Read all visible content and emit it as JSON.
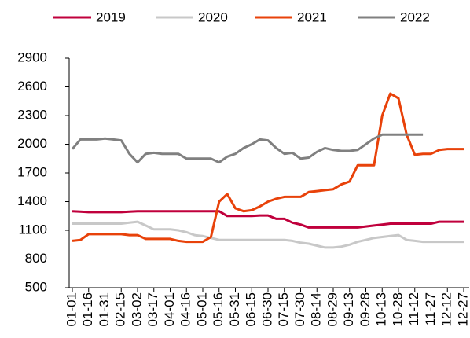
{
  "chart_data": {
    "type": "line",
    "categories": [
      "01-01",
      null,
      "01-16",
      null,
      "01-31",
      null,
      "02-15",
      null,
      "03-02",
      null,
      "03-17",
      null,
      "04-01",
      null,
      "04-16",
      null,
      "05-01",
      null,
      "05-16",
      null,
      "05-31",
      null,
      "06-15",
      null,
      "06-30",
      null,
      "07-15",
      null,
      "07-30",
      null,
      "08-14",
      null,
      "08-29",
      null,
      "09-13",
      null,
      "09-28",
      null,
      "10-13",
      null,
      "10-28",
      null,
      "11-12",
      null,
      "11-27",
      null,
      "12-12",
      null,
      "12-27"
    ],
    "series": [
      {
        "name": "2019",
        "color": "#c0003c",
        "values": [
          1300,
          1295,
          1290,
          1290,
          1290,
          1290,
          1290,
          1295,
          1300,
          1300,
          1300,
          1300,
          1300,
          1300,
          1300,
          1300,
          1300,
          1300,
          1300,
          1250,
          1250,
          1250,
          1250,
          1255,
          1255,
          1220,
          1220,
          1180,
          1160,
          1130,
          1130,
          1130,
          1130,
          1130,
          1130,
          1130,
          1140,
          1150,
          1160,
          1170,
          1170,
          1170,
          1170,
          1170,
          1170,
          1190,
          1190,
          1190,
          1190
        ]
      },
      {
        "name": "2020",
        "color": "#c8c8c8",
        "values": [
          1170,
          1170,
          1170,
          1170,
          1170,
          1170,
          1170,
          1180,
          1190,
          1150,
          1110,
          1110,
          1110,
          1100,
          1080,
          1050,
          1040,
          1020,
          1000,
          1000,
          1000,
          1000,
          1000,
          1000,
          1000,
          1000,
          1000,
          990,
          970,
          960,
          940,
          920,
          920,
          930,
          950,
          980,
          1000,
          1020,
          1030,
          1040,
          1050,
          1000,
          990,
          980,
          980,
          980,
          980,
          980,
          980
        ]
      },
      {
        "name": "2021",
        "color": "#e8420a",
        "values": [
          990,
          1000,
          1060,
          1060,
          1060,
          1060,
          1060,
          1050,
          1050,
          1010,
          1010,
          1010,
          1010,
          990,
          980,
          980,
          980,
          1030,
          1400,
          1480,
          1330,
          1300,
          1310,
          1350,
          1400,
          1430,
          1450,
          1450,
          1450,
          1500,
          1510,
          1520,
          1530,
          1580,
          1610,
          1780,
          1780,
          1780,
          2300,
          2530,
          2480,
          2100,
          1890,
          1900,
          1900,
          1940,
          1950,
          1950,
          1950
        ]
      },
      {
        "name": "2022",
        "color": "#808080",
        "values": [
          1950,
          2050,
          2050,
          2050,
          2060,
          2050,
          2040,
          1900,
          1810,
          1900,
          1910,
          1900,
          1900,
          1900,
          1850,
          1850,
          1850,
          1850,
          1810,
          1870,
          1900,
          1960,
          2000,
          2050,
          2040,
          1960,
          1900,
          1910,
          1850,
          1860,
          1920,
          1960,
          1940,
          1930,
          1930,
          1940,
          2000,
          2060,
          2100,
          2100,
          2100,
          2100,
          2100,
          2100,
          null,
          null,
          null,
          null,
          null
        ]
      }
    ],
    "ylim": [
      500,
      2900
    ],
    "yticks": [
      500,
      800,
      1100,
      1400,
      1700,
      2000,
      2300,
      2600,
      2900
    ]
  }
}
